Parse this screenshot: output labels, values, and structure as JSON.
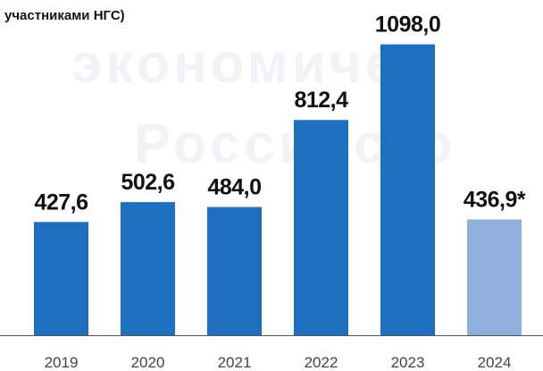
{
  "chart_data": {
    "type": "bar",
    "title": "участниками НГС)",
    "watermark": [
      "экономичес",
      "Российско"
    ],
    "categories": [
      "2019",
      "2020",
      "2021",
      "2022",
      "2023",
      "2024"
    ],
    "values": [
      427.6,
      502.6,
      484.0,
      812.4,
      1098.0,
      436.9
    ],
    "value_labels": [
      "427,6",
      "502,6",
      "484,0",
      "812,4",
      "1098,0",
      "436,9*"
    ],
    "colors": [
      "#1f6fc0",
      "#1f6fc0",
      "#1f6fc0",
      "#1f6fc0",
      "#1f6fc0",
      "#8fb0dc"
    ],
    "ylim": [
      0,
      1100
    ]
  }
}
